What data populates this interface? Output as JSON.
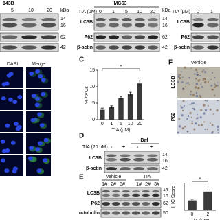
{
  "panel_a": {
    "cell_line": "143B",
    "lanes": [
      "5",
      "10",
      "20"
    ],
    "kda": "kDa",
    "markers": [
      "14",
      "16",
      "62",
      "42"
    ]
  },
  "panel_b": {
    "cell_line": "MG63",
    "dose_label": "TIA (μM)",
    "lanes": [
      "0",
      "1",
      "5",
      "10",
      "20"
    ],
    "kda": "kDa",
    "proteins": [
      "LC3B",
      "P62",
      "β-actin"
    ],
    "markers": [
      "14",
      "16",
      "62",
      "42"
    ]
  },
  "panel_b2": {
    "dose_label": "TIA (μM)",
    "lanes": [
      "0",
      "1"
    ],
    "proteins": [
      "LC3B",
      "P62",
      "β-actin"
    ]
  },
  "panel_if": {
    "columns": [
      "DAPI",
      "Merge"
    ]
  },
  "panel_c": {
    "letter": "C"
  },
  "panel_d": {
    "letter": "D",
    "treatment": "TIA (20 μM)",
    "baf": "Baf",
    "lanes": [
      "-",
      "+",
      "-",
      "+"
    ],
    "proteins": [
      "LC3B",
      "β-actin"
    ],
    "markers": [
      "14",
      "16",
      "42"
    ]
  },
  "panel_e": {
    "letter": "E",
    "groups": [
      "Vehicle",
      "TIA"
    ],
    "samples": [
      "1#",
      "2#",
      "3#",
      "1#",
      "2#",
      "3#"
    ],
    "proteins": [
      "LC3B",
      "P62",
      "α-tubulin"
    ],
    "markers": [
      "14",
      "16",
      "62",
      "50"
    ]
  },
  "panel_f": {
    "letter": "F",
    "group": "Vehicle",
    "rows": [
      "LC3B",
      "P62"
    ]
  },
  "chart_data": [
    {
      "type": "bar",
      "y_label": "% AVOs",
      "x_label": "TIA (μM)",
      "annotation": "*",
      "categories": [
        "0",
        "1",
        "5",
        "10",
        "20"
      ],
      "values": [
        3,
        3.8,
        6.5,
        7.8,
        11
      ],
      "errors": [
        0.5,
        0.4,
        0.6,
        0.5,
        1
      ],
      "color": "#3a3a3a",
      "ylim": [
        0,
        15
      ],
      "yticks": [
        0,
        5,
        10,
        15
      ]
    },
    {
      "type": "bar",
      "y_label": "IHC Score",
      "x_label": "TIA (μM)",
      "annotation": "*",
      "categories": [
        "0",
        "2"
      ],
      "values": [
        3.6,
        6.8
      ],
      "errors": [
        0.4,
        0.6
      ],
      "color": "#3a3a3a",
      "ylim": [
        0,
        10
      ]
    }
  ]
}
